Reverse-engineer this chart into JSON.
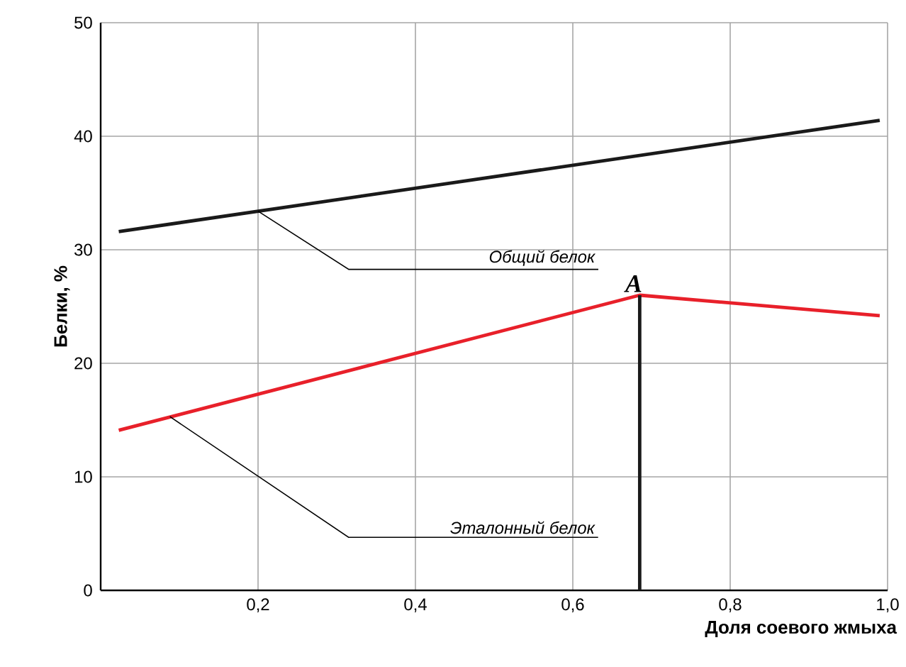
{
  "chart_data": {
    "type": "line",
    "xlabel": "Доля соевого жмыха",
    "ylabel": "Белки, %",
    "x": [
      0.023,
      0.99
    ],
    "series": [
      {
        "color": "#1a1a1a",
        "values": [
          31.6,
          41.4
        ]
      },
      {
        "color": "#e8202a",
        "x": [
          0.023,
          0.685,
          0.99
        ],
        "values": [
          14.1,
          26.0,
          24.2
        ]
      },
      {
        "color": "#1a1a1a",
        "x": [
          0.685,
          0.685
        ],
        "values": [
          0,
          26.0
        ]
      }
    ],
    "xlim": [
      0,
      1.0
    ],
    "ylim": [
      0,
      50
    ],
    "xticks": [
      {
        "value": 0.2,
        "label": "0,2"
      },
      {
        "value": 0.4,
        "label": "0,4"
      },
      {
        "value": 0.6,
        "label": "0,6"
      },
      {
        "value": 0.8,
        "label": "0,8"
      },
      {
        "value": 1.0,
        "label": "1,0"
      }
    ],
    "yticks": [
      0,
      10,
      20,
      30,
      40,
      50
    ],
    "grid": true,
    "marker": "none",
    "line_style": "solid",
    "annotations": [
      {
        "text": "Общий белок",
        "x": 0.2,
        "y": 33.4
      },
      {
        "text": "Эталонный белок",
        "x": 0.088,
        "y": 15.3
      },
      {
        "text": "A",
        "x": 0.685,
        "y": 26.0
      }
    ]
  }
}
